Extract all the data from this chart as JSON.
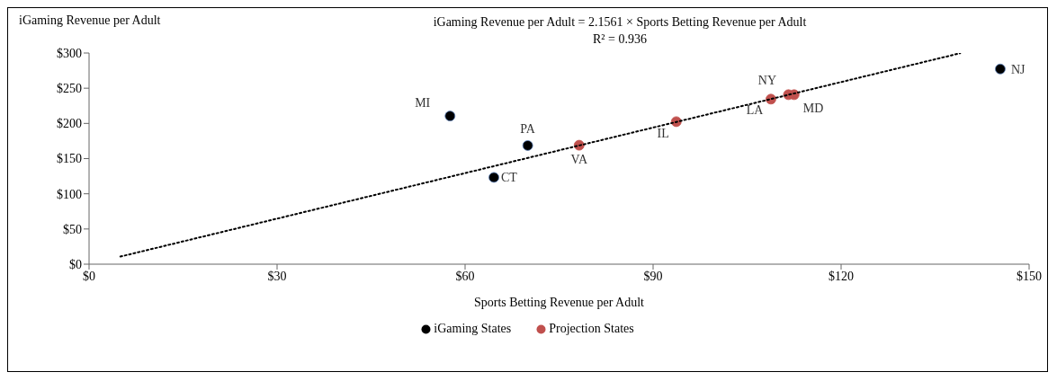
{
  "chart_data": {
    "type": "scatter",
    "ylabel": "iGaming Revenue per Adult",
    "xlabel": "Sports Betting Revenue per Adult",
    "annotations": [
      "iGaming Revenue per Adult = 2.1561 × Sports Betting Revenue per Adult",
      "R² = 0.936",
      {
        "text": "MI",
        "x": 57.6,
        "y": 210.5
      },
      {
        "text": "PA",
        "x": 70.0,
        "y": 168.6
      },
      {
        "text": "CT",
        "x": 64.6,
        "y": 123.3
      },
      {
        "text": "VA",
        "x": 78.2,
        "y": 169
      },
      {
        "text": "IL",
        "x": 93.7,
        "y": 202.5
      },
      {
        "text": "NY",
        "x": 108.8,
        "y": 234.5
      },
      {
        "text": "LA",
        "x": 111.6,
        "y": 240.8
      },
      {
        "text": "MD",
        "x": 112.5,
        "y": 240.8
      },
      {
        "text": "NJ",
        "x": 145.4,
        "y": 277.3
      }
    ],
    "series": [
      {
        "name": "iGaming States",
        "color": "#000000",
        "x": [
          57.6,
          70.0,
          64.6,
          145.4
        ],
        "values": [
          210.5,
          168.6,
          123.3,
          277.3
        ]
      },
      {
        "name": "Projection States",
        "color": "#c0504d",
        "x": [
          78.2,
          93.7,
          108.8,
          111.6,
          112.5
        ],
        "values": [
          169,
          202.5,
          234.5,
          240.8,
          240.8
        ]
      },
      {
        "type": "line",
        "color": "#000000",
        "line_style": "dotted",
        "marker": "none",
        "x": [
          5,
          139
        ],
        "values": [
          10.8,
          299.7
        ]
      }
    ],
    "xlim": [
      0,
      150
    ],
    "xticks": [
      {
        "value": 0,
        "label": "$0"
      },
      {
        "value": 30,
        "label": "$30"
      },
      {
        "value": 60,
        "label": "$60"
      },
      {
        "value": 90,
        "label": "$90"
      },
      {
        "value": 120,
        "label": "$120"
      },
      {
        "value": 150,
        "label": "$150"
      }
    ],
    "ylim": [
      0,
      300
    ],
    "yticks": [
      {
        "value": 0,
        "label": "$0"
      },
      {
        "value": 50,
        "label": "$50"
      },
      {
        "value": 100,
        "label": "$100"
      },
      {
        "value": 150,
        "label": "$150"
      },
      {
        "value": 200,
        "label": "$200"
      },
      {
        "value": 250,
        "label": "$250"
      },
      {
        "value": 300,
        "label": "$300"
      }
    ],
    "grid": false,
    "legend": "bottom",
    "marker": "circle"
  }
}
